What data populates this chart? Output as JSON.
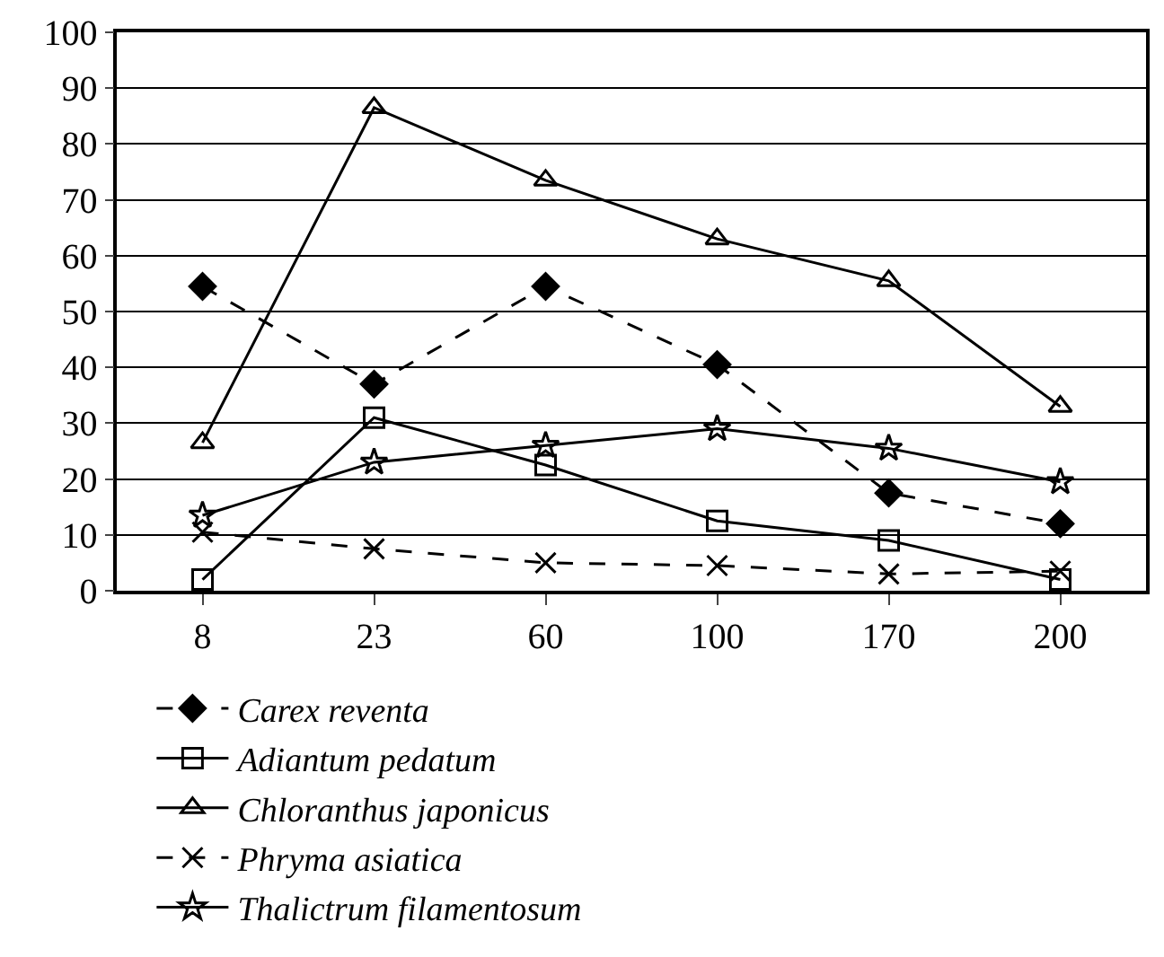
{
  "chart_data": {
    "type": "line",
    "categories": [
      "8",
      "23",
      "60",
      "100",
      "170",
      "200"
    ],
    "ylim": [
      0,
      100
    ],
    "yticks": [
      0,
      10,
      20,
      30,
      40,
      50,
      60,
      70,
      80,
      90,
      100
    ],
    "grid": "y",
    "legend": "bottom",
    "series": [
      {
        "name": "Carex reventa",
        "color": "#000000",
        "marker": "diamond",
        "line_style": "dashed",
        "values": [
          54.5,
          37,
          54.5,
          40.5,
          17.5,
          12
        ]
      },
      {
        "name": "Adiantum pedatum",
        "color": "#000000",
        "marker": "square",
        "line_style": "solid",
        "values": [
          2,
          31,
          22.5,
          12.5,
          9,
          2
        ]
      },
      {
        "name": "Chloranthus japonicus",
        "color": "#000000",
        "marker": "triangle",
        "line_style": "solid",
        "values": [
          26.5,
          86.5,
          73.5,
          63,
          55.5,
          33
        ]
      },
      {
        "name": "Phryma asiatica",
        "color": "#000000",
        "marker": "cross",
        "line_style": "dashed",
        "values": [
          10.5,
          7.5,
          5,
          4.5,
          3,
          3.5
        ]
      },
      {
        "name": "Thalictrum filamentosum",
        "color": "#000000",
        "marker": "star",
        "line_style": "solid",
        "values": [
          13.5,
          23,
          26,
          29,
          25.5,
          19.5
        ]
      }
    ]
  }
}
